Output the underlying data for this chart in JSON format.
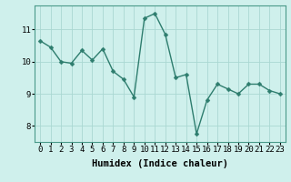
{
  "x_values": [
    0,
    1,
    2,
    3,
    4,
    5,
    6,
    7,
    8,
    9,
    10,
    11,
    12,
    13,
    14,
    15,
    16,
    17,
    18,
    19,
    20,
    21,
    22,
    23
  ],
  "y_values": [
    10.65,
    10.45,
    10.0,
    9.95,
    10.35,
    10.05,
    10.4,
    9.7,
    9.45,
    8.9,
    11.35,
    11.5,
    10.85,
    9.5,
    9.6,
    7.75,
    8.8,
    9.3,
    9.15,
    9.0,
    9.3,
    9.3,
    9.1,
    9.0
  ],
  "line_color": "#2e7d6e",
  "bg_color": "#cff0ec",
  "grid_color": "#aad8d2",
  "xlabel": "Humidex (Indice chaleur)",
  "xlim": [
    -0.5,
    23.5
  ],
  "ylim": [
    7.5,
    11.75
  ],
  "yticks": [
    8,
    9,
    10,
    11
  ],
  "xticks": [
    0,
    1,
    2,
    3,
    4,
    5,
    6,
    7,
    8,
    9,
    10,
    11,
    12,
    13,
    14,
    15,
    16,
    17,
    18,
    19,
    20,
    21,
    22,
    23
  ],
  "marker_size": 2.5,
  "line_width": 1.0,
  "font_size": 6.5,
  "label_font_size": 7.5,
  "spine_color": "#4a9a8a"
}
